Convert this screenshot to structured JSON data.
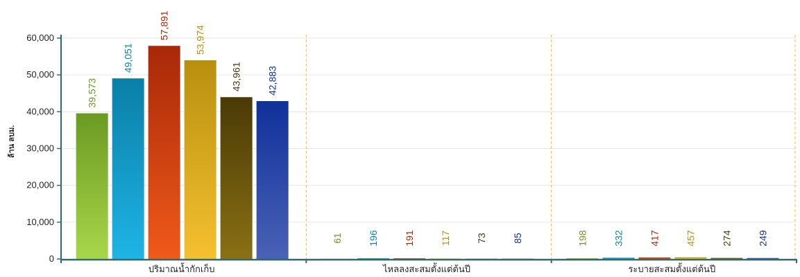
{
  "chart_data": {
    "type": "bar",
    "title": "",
    "xlabel": "",
    "ylabel": "ล้าน ลบม.",
    "ylim": [
      0,
      60000
    ],
    "yticks": [
      0,
      10000,
      20000,
      30000,
      40000,
      50000,
      60000
    ],
    "ytick_labels": [
      "0",
      "10,000",
      "20,000",
      "30,000",
      "40,000",
      "50,000",
      "60,000"
    ],
    "grid": true,
    "legend": "none",
    "categories": [
      "ปริมาณน้ำกักเก็บ",
      "ไหลลงสะสมตั้งแต่ต้นปี",
      "ระบายสะสมตั้งแต่ต้นปี"
    ],
    "series": [
      {
        "color_top": "#a8d64a",
        "color_bottom": "#6b9a22",
        "label_color": "#6b9a22",
        "values": [
          39573,
          61,
          198
        ],
        "value_labels": [
          "39,573",
          "61",
          "198"
        ]
      },
      {
        "color_top": "#1eb4e6",
        "color_bottom": "#0a7fa6",
        "label_color": "#0a87b0",
        "values": [
          49051,
          196,
          332
        ],
        "value_labels": [
          "49,051",
          "196",
          "332"
        ]
      },
      {
        "color_top": "#f05a1a",
        "color_bottom": "#a82808",
        "label_color": "#b02808",
        "values": [
          57891,
          191,
          417
        ],
        "value_labels": [
          "57,891",
          "191",
          "417"
        ]
      },
      {
        "color_top": "#f5c030",
        "color_bottom": "#b8900e",
        "label_color": "#b8900e",
        "values": [
          53974,
          117,
          457
        ],
        "value_labels": [
          "53,974",
          "117",
          "457"
        ]
      },
      {
        "color_top": "#8a7014",
        "color_bottom": "#4a3a06",
        "label_color": "#4a3a06",
        "values": [
          43961,
          73,
          274
        ],
        "value_labels": [
          "43,961",
          "73",
          "274"
        ]
      },
      {
        "color_top": "#4a62b6",
        "color_bottom": "#10309a",
        "label_color": "#10309a",
        "values": [
          42883,
          85,
          249
        ],
        "value_labels": [
          "42,883",
          "85",
          "249"
        ]
      }
    ],
    "colors": {
      "axis": "#2e6b6b",
      "grid": "#e6e6e6",
      "separator": "#f0c040"
    }
  }
}
